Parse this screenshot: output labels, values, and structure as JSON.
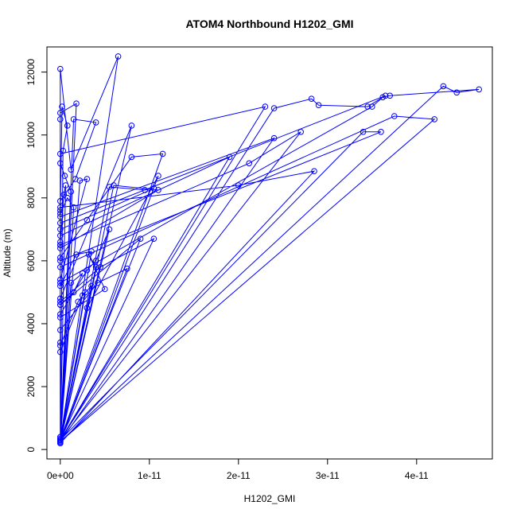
{
  "chart_data": {
    "type": "line",
    "title": "ATOM4 Northbound H1202_GMI",
    "xlabel": "H1202_GMI",
    "ylabel": "Altitude (m)",
    "xlim": [
      -1.5e-12,
      4.85e-11
    ],
    "ylim": [
      -300,
      12800
    ],
    "x_ticks": [
      0,
      1e-11,
      2e-11,
      3e-11,
      4e-11
    ],
    "x_tick_labels": [
      "0e+00",
      "1e-11",
      "2e-11",
      "3e-11",
      "4e-11"
    ],
    "y_ticks": [
      0,
      2000,
      4000,
      6000,
      8000,
      10000,
      12000
    ],
    "y_tick_labels": [
      "0",
      "2000",
      "4000",
      "6000",
      "8000",
      "10000",
      "12000"
    ],
    "grid": false,
    "legend": "none",
    "series_color": "#0000ff",
    "x": [
      0,
      0,
      0,
      0,
      0,
      0,
      1.2e-12,
      6.5e-12,
      0,
      3e-12,
      1.1e-11,
      0,
      8e-12,
      0,
      0,
      2.3e-11,
      0,
      0,
      1.8e-12,
      0,
      0,
      1.5e-12,
      4e-12,
      1.7e-12,
      0,
      0,
      1.9e-11,
      0,
      0,
      2.4e-11,
      0,
      0,
      3.4e-11,
      3.6e-11,
      0,
      0,
      4.2e-11,
      3.75e-11,
      0,
      0,
      2.85e-11,
      2e-11,
      0,
      0,
      2.7e-11,
      2.12e-11,
      0,
      0,
      2.4e-11,
      2.82e-11,
      2.9e-11,
      3.45e-11,
      3.65e-11,
      0,
      0,
      4.3e-11,
      4.45e-11,
      4.7e-11,
      3.7e-11,
      3.62e-11,
      3.5e-11,
      0,
      0,
      5.5e-12,
      9.5e-12,
      1.05e-11,
      0,
      0,
      1.15e-11,
      8e-12,
      3e-12,
      0,
      0,
      3.5e-12,
      1.8e-12,
      0,
      0,
      9e-12,
      0,
      0,
      5.5e-12,
      4e-12,
      3e-12,
      0,
      0,
      1.05e-11,
      4.5e-12,
      0,
      0,
      7.5e-12,
      4.2e-12,
      0,
      0,
      2.8e-12,
      2e-12,
      0,
      0,
      4e-12,
      3.2e-12,
      5e-12,
      0,
      0,
      1.2e-12,
      2.5e-12,
      1.5e-12,
      0,
      0,
      2.2e-12,
      3e-12,
      0,
      0,
      6e-12,
      1.1e-11,
      0,
      0,
      1.5e-12,
      8e-13,
      0,
      0,
      1.2e-12,
      5e-13,
      0,
      0,
      3e-13,
      8e-13,
      2e-13,
      0,
      0,
      6e-13,
      4e-13,
      0,
      0,
      3.5e-12,
      2.5e-12,
      0
    ],
    "y": [
      200,
      400,
      3400,
      6500,
      10500,
      12100,
      8900,
      12500,
      300,
      4500,
      8700,
      250,
      10300,
      4800,
      300,
      10900,
      9400,
      200,
      11000,
      10700,
      250,
      10500,
      10400,
      8600,
      7900,
      300,
      9300,
      6800,
      250,
      9900,
      7400,
      300,
      10100,
      10100,
      6000,
      250,
      10500,
      10600,
      5800,
      200,
      8850,
      8400,
      7700,
      300,
      10100,
      9100,
      6500,
      300,
      10850,
      11150,
      10950,
      10900,
      11250,
      7200,
      250,
      11550,
      11350,
      11450,
      11250,
      11200,
      10900,
      5300,
      250,
      8350,
      8250,
      8300,
      7000,
      300,
      9400,
      9300,
      7300,
      6100,
      250,
      6300,
      6200,
      5200,
      300,
      6700,
      4600,
      250,
      7000,
      6000,
      5700,
      4300,
      300,
      6700,
      5800,
      4700,
      250,
      5750,
      5300,
      3800,
      250,
      5000,
      4700,
      3300,
      300,
      5800,
      6200,
      5100,
      4200,
      250,
      5300,
      5600,
      5000,
      4600,
      250,
      8550,
      8600,
      5400,
      300,
      8400,
      8250,
      6400,
      250,
      7700,
      8000,
      7500,
      300,
      8200,
      8700,
      9100,
      350,
      9500,
      10300,
      10900,
      7600,
      300,
      8400,
      8100,
      6600,
      300,
      5200,
      4900,
      3100
    ]
  }
}
